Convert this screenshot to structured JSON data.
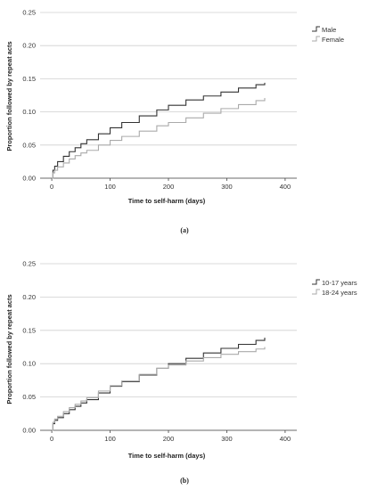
{
  "chart_data": [
    {
      "type": "line",
      "panel_label": "(a)",
      "xlabel": "Time to self-harm (days)",
      "ylabel": "Proportion followed by repeat acts",
      "xlim": [
        -20,
        420
      ],
      "ylim": [
        0,
        0.25
      ],
      "xticks": [
        0,
        100,
        200,
        300,
        400
      ],
      "yticks": [
        0.0,
        0.05,
        0.1,
        0.15,
        0.2,
        0.25
      ],
      "ytick_labels": [
        "0.00",
        "0.05",
        "0.10",
        "0.15",
        "0.20",
        "0.25"
      ],
      "grid": "horizontal",
      "legend_position": "right",
      "series": [
        {
          "name": "Male",
          "color": "#333333",
          "x": [
            0,
            2,
            5,
            10,
            20,
            30,
            40,
            50,
            60,
            80,
            100,
            120,
            150,
            180,
            200,
            230,
            260,
            290,
            320,
            350,
            365
          ],
          "y": [
            0.0,
            0.012,
            0.018,
            0.025,
            0.033,
            0.04,
            0.046,
            0.052,
            0.058,
            0.067,
            0.076,
            0.084,
            0.094,
            0.103,
            0.11,
            0.118,
            0.124,
            0.13,
            0.136,
            0.141,
            0.144
          ]
        },
        {
          "name": "Female",
          "color": "#aaaaaa",
          "x": [
            0,
            2,
            5,
            10,
            20,
            30,
            40,
            50,
            60,
            80,
            100,
            120,
            150,
            180,
            200,
            230,
            260,
            290,
            320,
            350,
            365
          ],
          "y": [
            0.0,
            0.008,
            0.012,
            0.017,
            0.023,
            0.029,
            0.034,
            0.038,
            0.042,
            0.05,
            0.057,
            0.063,
            0.071,
            0.079,
            0.084,
            0.091,
            0.098,
            0.105,
            0.111,
            0.117,
            0.121
          ]
        }
      ]
    },
    {
      "type": "line",
      "panel_label": "(b)",
      "xlabel": "Time to self-harm (days)",
      "ylabel": "Proportion followed by repeat acts",
      "xlim": [
        -20,
        420
      ],
      "ylim": [
        0,
        0.25
      ],
      "xticks": [
        0,
        100,
        200,
        300,
        400
      ],
      "yticks": [
        0.0,
        0.05,
        0.1,
        0.15,
        0.2,
        0.25
      ],
      "ytick_labels": [
        "0.00",
        "0.05",
        "0.10",
        "0.15",
        "0.20",
        "0.25"
      ],
      "grid": "horizontal",
      "legend_position": "right",
      "series": [
        {
          "name": "10-17 years",
          "color": "#333333",
          "x": [
            0,
            2,
            5,
            10,
            20,
            30,
            40,
            50,
            60,
            80,
            100,
            120,
            150,
            180,
            200,
            230,
            260,
            290,
            320,
            350,
            365
          ],
          "y": [
            0.0,
            0.01,
            0.015,
            0.019,
            0.025,
            0.031,
            0.036,
            0.041,
            0.046,
            0.056,
            0.066,
            0.073,
            0.083,
            0.093,
            0.1,
            0.108,
            0.116,
            0.123,
            0.129,
            0.135,
            0.139
          ]
        },
        {
          "name": "18-24 years",
          "color": "#aaaaaa",
          "x": [
            0,
            2,
            5,
            10,
            20,
            30,
            40,
            50,
            60,
            80,
            100,
            120,
            150,
            180,
            200,
            230,
            260,
            290,
            320,
            350,
            365
          ],
          "y": [
            0.0,
            0.012,
            0.017,
            0.021,
            0.028,
            0.034,
            0.039,
            0.044,
            0.049,
            0.059,
            0.067,
            0.074,
            0.084,
            0.093,
            0.098,
            0.104,
            0.109,
            0.114,
            0.118,
            0.122,
            0.125
          ]
        }
      ]
    }
  ]
}
